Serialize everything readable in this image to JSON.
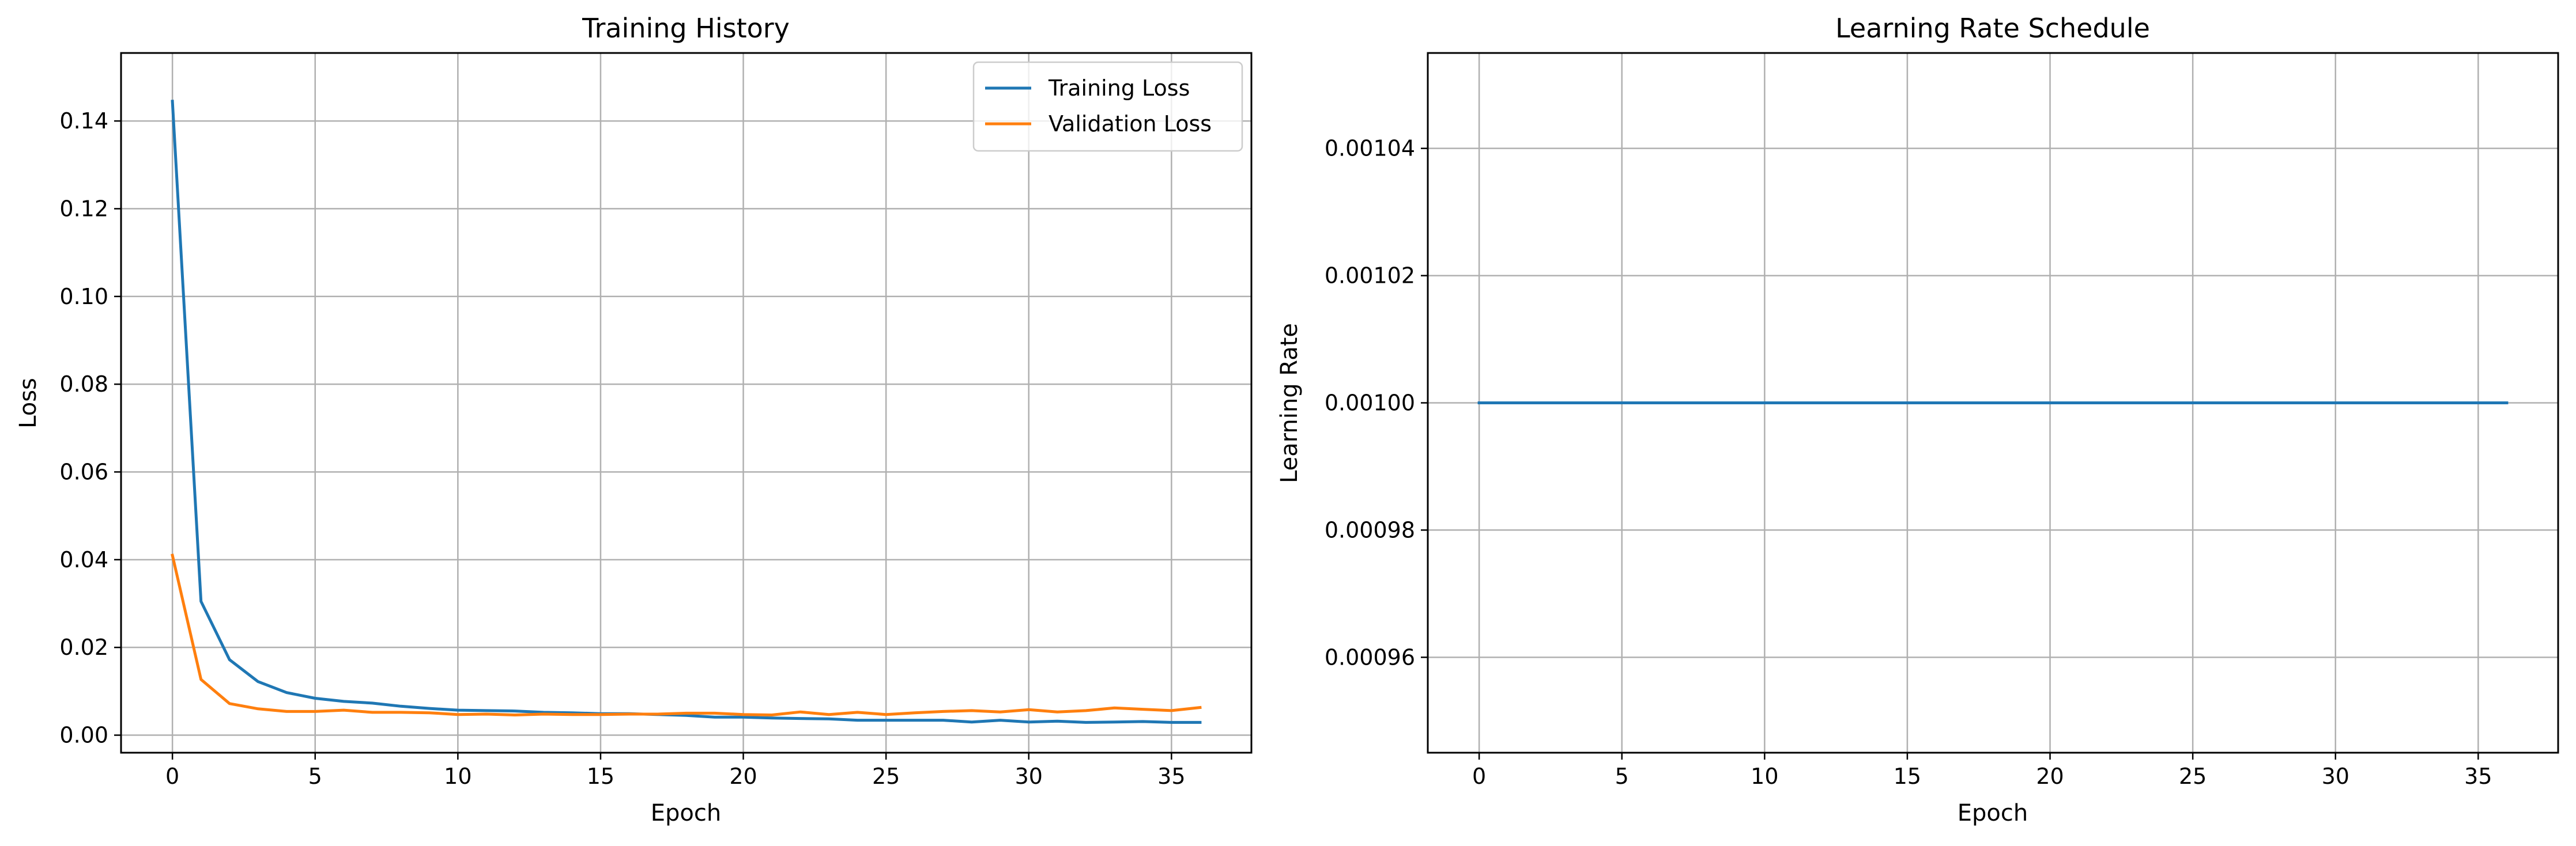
{
  "chart_data": [
    {
      "type": "line",
      "title": "Training History",
      "xlabel": "Epoch",
      "ylabel": "Loss",
      "xlim": [
        -1.8,
        37.8
      ],
      "ylim": [
        -0.004,
        0.1555
      ],
      "xticks": [
        0,
        5,
        10,
        15,
        20,
        25,
        30,
        35
      ],
      "xtick_labels": [
        "0",
        "5",
        "10",
        "15",
        "20",
        "25",
        "30",
        "35"
      ],
      "yticks": [
        0.0,
        0.02,
        0.04,
        0.06,
        0.08,
        0.1,
        0.12,
        0.14
      ],
      "ytick_labels": [
        "0.00",
        "0.02",
        "0.04",
        "0.06",
        "0.08",
        "0.10",
        "0.12",
        "0.14"
      ],
      "grid": true,
      "legend_position": "top-right",
      "x": [
        0,
        1,
        2,
        3,
        4,
        5,
        6,
        7,
        8,
        9,
        10,
        11,
        12,
        13,
        14,
        15,
        16,
        17,
        18,
        19,
        20,
        21,
        22,
        23,
        24,
        25,
        26,
        27,
        28,
        29,
        30,
        31,
        32,
        33,
        34,
        35,
        36
      ],
      "series": [
        {
          "name": "Training Loss",
          "color": "#1f77b4",
          "values": [
            0.1445,
            0.0305,
            0.0172,
            0.0122,
            0.0097,
            0.0084,
            0.0077,
            0.0073,
            0.0066,
            0.0061,
            0.0057,
            0.0056,
            0.0055,
            0.0052,
            0.0051,
            0.0049,
            0.0049,
            0.0047,
            0.0045,
            0.0041,
            0.0041,
            0.0039,
            0.0038,
            0.0037,
            0.0034,
            0.0034,
            0.0034,
            0.0034,
            0.003,
            0.0034,
            0.003,
            0.0032,
            0.0029,
            0.003,
            0.0031,
            0.0029,
            0.0029
          ]
        },
        {
          "name": "Validation Loss",
          "color": "#ff7f0e",
          "values": [
            0.041,
            0.0127,
            0.0072,
            0.006,
            0.0054,
            0.0054,
            0.0057,
            0.0052,
            0.0052,
            0.0051,
            0.0047,
            0.0048,
            0.0046,
            0.0048,
            0.0047,
            0.0047,
            0.0048,
            0.0048,
            0.005,
            0.005,
            0.0047,
            0.0046,
            0.0053,
            0.0047,
            0.0052,
            0.0047,
            0.0051,
            0.0054,
            0.0056,
            0.0053,
            0.0058,
            0.0053,
            0.0056,
            0.0062,
            0.0059,
            0.0056,
            0.0063
          ]
        }
      ]
    },
    {
      "type": "line",
      "title": "Learning Rate Schedule",
      "xlabel": "Epoch",
      "ylabel": "Learning Rate",
      "xlim": [
        -1.8,
        37.8
      ],
      "ylim": [
        0.000945,
        0.001055
      ],
      "xticks": [
        0,
        5,
        10,
        15,
        20,
        25,
        30,
        35
      ],
      "xtick_labels": [
        "0",
        "5",
        "10",
        "15",
        "20",
        "25",
        "30",
        "35"
      ],
      "yticks": [
        0.00096,
        0.00098,
        0.001,
        0.00102,
        0.00104
      ],
      "ytick_labels": [
        "0.00096",
        "0.00098",
        "0.00100",
        "0.00102",
        "0.00104"
      ],
      "grid": true,
      "x": [
        0,
        1,
        2,
        3,
        4,
        5,
        6,
        7,
        8,
        9,
        10,
        11,
        12,
        13,
        14,
        15,
        16,
        17,
        18,
        19,
        20,
        21,
        22,
        23,
        24,
        25,
        26,
        27,
        28,
        29,
        30,
        31,
        32,
        33,
        34,
        35,
        36
      ],
      "series": [
        {
          "color": "#1f77b4",
          "values": [
            0.001,
            0.001,
            0.001,
            0.001,
            0.001,
            0.001,
            0.001,
            0.001,
            0.001,
            0.001,
            0.001,
            0.001,
            0.001,
            0.001,
            0.001,
            0.001,
            0.001,
            0.001,
            0.001,
            0.001,
            0.001,
            0.001,
            0.001,
            0.001,
            0.001,
            0.001,
            0.001,
            0.001,
            0.001,
            0.001,
            0.001,
            0.001,
            0.001,
            0.001,
            0.001,
            0.001,
            0.001
          ]
        }
      ]
    }
  ]
}
